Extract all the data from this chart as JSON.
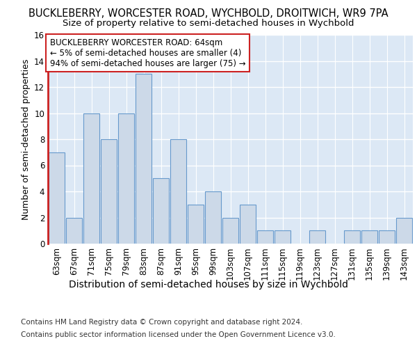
{
  "title": "BUCKLEBERRY, WORCESTER ROAD, WYCHBOLD, DROITWICH, WR9 7PA",
  "subtitle": "Size of property relative to semi-detached houses in Wychbold",
  "xlabel": "Distribution of semi-detached houses by size in Wychbold",
  "ylabel": "Number of semi-detached properties",
  "categories": [
    "63sqm",
    "67sqm",
    "71sqm",
    "75sqm",
    "79sqm",
    "83sqm",
    "87sqm",
    "91sqm",
    "95sqm",
    "99sqm",
    "103sqm",
    "107sqm",
    "111sqm",
    "115sqm",
    "119sqm",
    "123sqm",
    "127sqm",
    "131sqm",
    "135sqm",
    "139sqm",
    "143sqm"
  ],
  "values": [
    7,
    2,
    10,
    8,
    10,
    13,
    5,
    8,
    3,
    4,
    2,
    3,
    1,
    1,
    0,
    1,
    0,
    1,
    1,
    1,
    2
  ],
  "bar_color": "#ccd9e8",
  "bar_edge_color": "#6699cc",
  "annotation_box_text": "BUCKLEBERRY WORCESTER ROAD: 64sqm\n← 5% of semi-detached houses are smaller (4)\n94% of semi-detached houses are larger (75) →",
  "annotation_box_color": "white",
  "annotation_box_edge_color": "#cc2222",
  "red_line_color": "#cc2222",
  "footnote1": "Contains HM Land Registry data © Crown copyright and database right 2024.",
  "footnote2": "Contains public sector information licensed under the Open Government Licence v3.0.",
  "ylim": [
    0,
    16
  ],
  "yticks": [
    0,
    2,
    4,
    6,
    8,
    10,
    12,
    14,
    16
  ],
  "plot_bg_color": "#dce8f5",
  "grid_color": "white",
  "title_fontsize": 10.5,
  "subtitle_fontsize": 9.5,
  "xlabel_fontsize": 10,
  "ylabel_fontsize": 9,
  "tick_fontsize": 8.5,
  "annotation_fontsize": 8.5,
  "footnote_fontsize": 7.5
}
